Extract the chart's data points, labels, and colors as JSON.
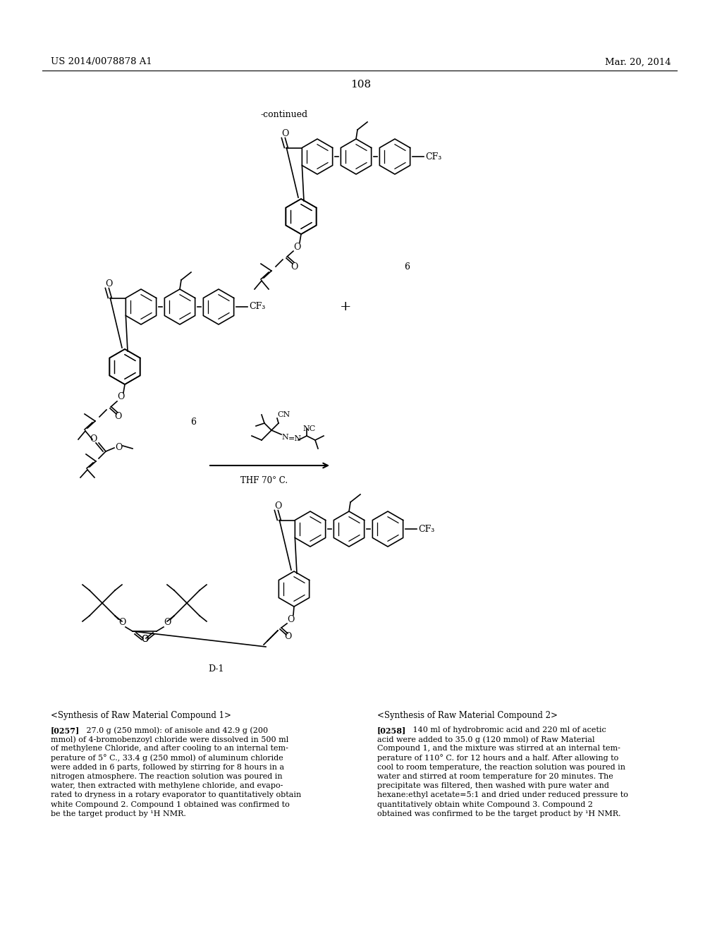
{
  "page_header_left": "US 2014/0078878 A1",
  "page_header_right": "Mar. 20, 2014",
  "page_number": "108",
  "continued_label": "-continued",
  "compound_label_6a": "6",
  "compound_label_6b": "6",
  "compound_label_D1": "D-1",
  "reaction_condition": "THF 70° C.",
  "plus_sign": "+",
  "text_col1_heading": "<Synthesis of Raw Material Compound 1>",
  "text_col2_heading": "<Synthesis of Raw Material Compound 2>",
  "bg_color": "#ffffff",
  "text_color": "#000000",
  "col1_line0_bold": "[0257]",
  "col1_line0_rest": "   27.0 g (250 mmol): of anisole and 42.9 g (200",
  "col1_lines": [
    "mmol) of 4-bromobenzoyl chloride were dissolved in 500 ml",
    "of methylene Chloride, and after cooling to an internal tem-",
    "perature of 5° C., 33.4 g (250 mmol) of aluminum chloride",
    "were added in 6 parts, followed by stirring for 8 hours in a",
    "nitrogen atmosphere. The reaction solution was poured in",
    "water, then extracted with methylene chloride, and evapo-",
    "rated to dryness in a rotary evaporator to quantitatively obtain",
    "white Compound 2. Compound 1 obtained was confirmed to",
    "be the target product by ¹H NMR."
  ],
  "col2_line0_bold": "[0258]",
  "col2_line0_rest": "   140 ml of hydrobromic acid and 220 ml of acetic",
  "col2_lines": [
    "acid were added to 35.0 g (120 mmol) of Raw Material",
    "Compound 1, and the mixture was stirred at an internal tem-",
    "perature of 110° C. for 12 hours and a half. After allowing to",
    "cool to room temperature, the reaction solution was poured in",
    "water and stirred at room temperature for 20 minutes. The",
    "precipitate was filtered, then washed with pure water and",
    "hexane:ethyl acetate=5:1 and dried under reduced pressure to",
    "quantitatively obtain white Compound 3. Compound 2",
    "obtained was confirmed to be the target product by ¹H NMR."
  ]
}
